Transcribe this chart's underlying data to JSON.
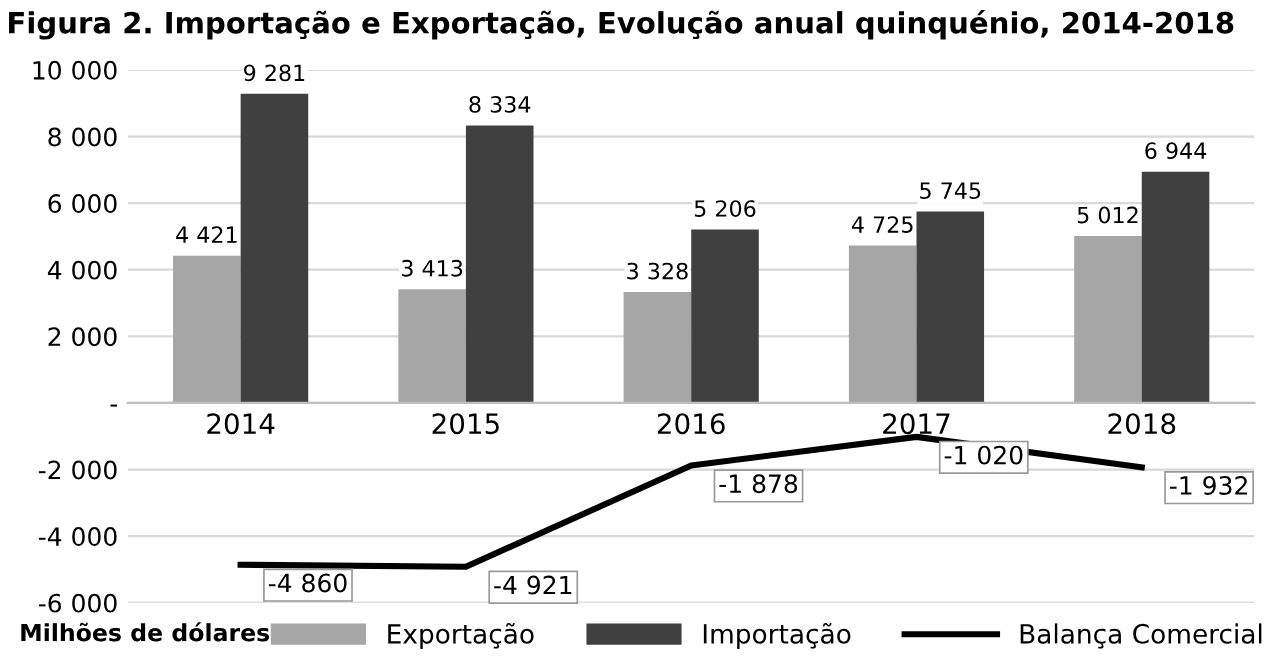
{
  "chart_data": {
    "type": "bar",
    "title": "Figura 2. Importação e Exportação, Evolução anual quinquénio, 2014-2018",
    "categories": [
      "2014",
      "2015",
      "2016",
      "2017",
      "2018"
    ],
    "series": [
      {
        "name": "Exportação",
        "color": "#a6a6a6",
        "values": [
          4421,
          3413,
          3328,
          4725,
          5012
        ],
        "value_labels": [
          "4 421",
          "3 413",
          "3 328",
          "4 725",
          "5 012"
        ]
      },
      {
        "name": "Importação",
        "color": "#404040",
        "values": [
          9281,
          8334,
          5206,
          5745,
          6944
        ],
        "value_labels": [
          "9 281",
          "8 334",
          "5 206",
          "5 745",
          "6 944"
        ]
      },
      {
        "name": "Balança Comercial",
        "type": "line",
        "color": "#000000",
        "values": [
          -4860,
          -4921,
          -1878,
          -1020,
          -1932
        ],
        "value_labels": [
          "-4 860",
          "-4 921",
          "-1 878",
          "-1 020",
          "-1 932"
        ]
      }
    ],
    "ylim": [
      -6000,
      10000
    ],
    "yticks": [
      {
        "value": -6000,
        "label": "-6 000"
      },
      {
        "value": -4000,
        "label": "-4 000"
      },
      {
        "value": -2000,
        "label": "-2 000"
      },
      {
        "value": 0,
        "label": "-"
      },
      {
        "value": 2000,
        "label": "2 000"
      },
      {
        "value": 4000,
        "label": "4 000"
      },
      {
        "value": 6000,
        "label": "6 000"
      },
      {
        "value": 8000,
        "label": "8 000"
      },
      {
        "value": 10000,
        "label": "10 000"
      }
    ],
    "grid": "y",
    "legend": "bottom",
    "marker": "none",
    "line_style": "solid",
    "annotations": [
      "Milhões de dólares"
    ]
  }
}
